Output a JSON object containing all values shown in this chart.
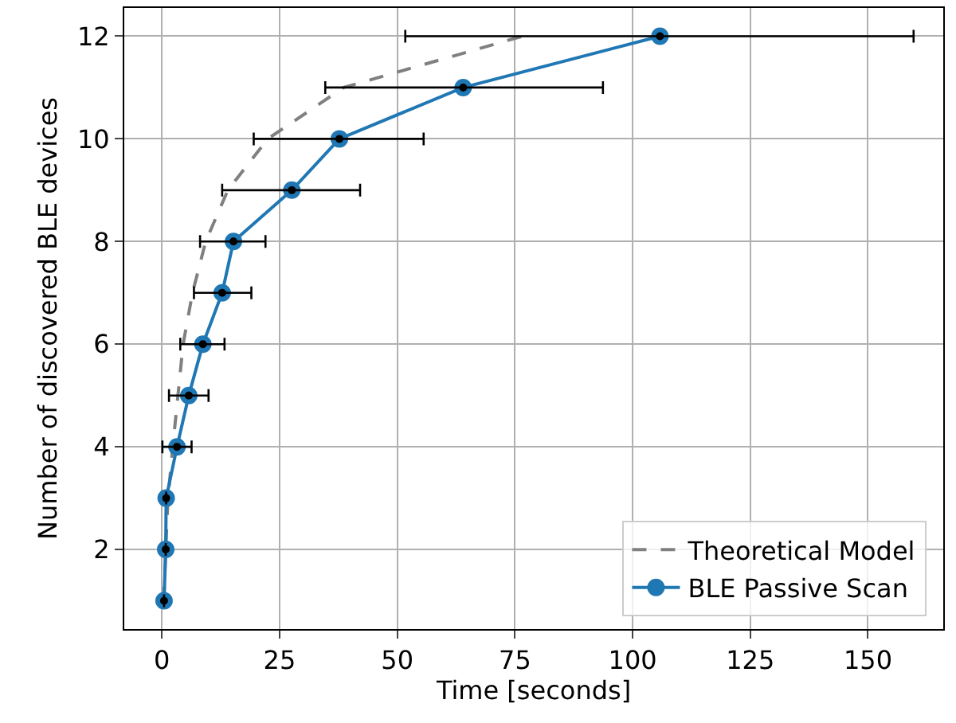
{
  "chart_data": {
    "type": "line",
    "xlabel": "Time [seconds]",
    "ylabel": "Number of discovered BLE devices",
    "xlim": [
      -8,
      166
    ],
    "xticks": [
      0,
      25,
      50,
      75,
      100,
      125,
      150
    ],
    "ylim": [
      0.45,
      12.55
    ],
    "yticks": [
      2,
      4,
      6,
      8,
      10,
      12
    ],
    "grid": true,
    "legend": "bottom right",
    "series": [
      {
        "name": "Theoretical Model",
        "color": "#808080",
        "line_style": "dashed",
        "marker": "none",
        "x": [
          0.4,
          0.8,
          1.3,
          2.3,
          3.4,
          4.5,
          6.5,
          9.3,
          14,
          22.5,
          38.6,
          76.6
        ],
        "values": [
          1,
          2,
          3,
          4,
          5,
          6,
          7,
          8,
          9,
          10,
          11,
          12
        ]
      },
      {
        "name": "BLE Passive Scan",
        "color": "#1f77b4",
        "line_style": "solid",
        "marker": "circle",
        "x": [
          0.45,
          0.8,
          0.9,
          3.2,
          5.7,
          8.7,
          12.8,
          15.2,
          27.6,
          37.7,
          64,
          105.8
        ],
        "values": [
          1,
          2,
          3,
          4,
          5,
          6,
          7,
          8,
          9,
          10,
          11,
          12
        ],
        "xerrors": [
          null,
          null,
          null,
          [
            0.1,
            6.3
          ],
          [
            1.5,
            9.9
          ],
          [
            3.9,
            13.3
          ],
          [
            6.8,
            19
          ],
          [
            8.1,
            22
          ],
          [
            12.8,
            42.1
          ],
          [
            19.5,
            55.6
          ],
          [
            34.7,
            93.7
          ],
          [
            51.7,
            159.7
          ]
        ]
      }
    ]
  }
}
